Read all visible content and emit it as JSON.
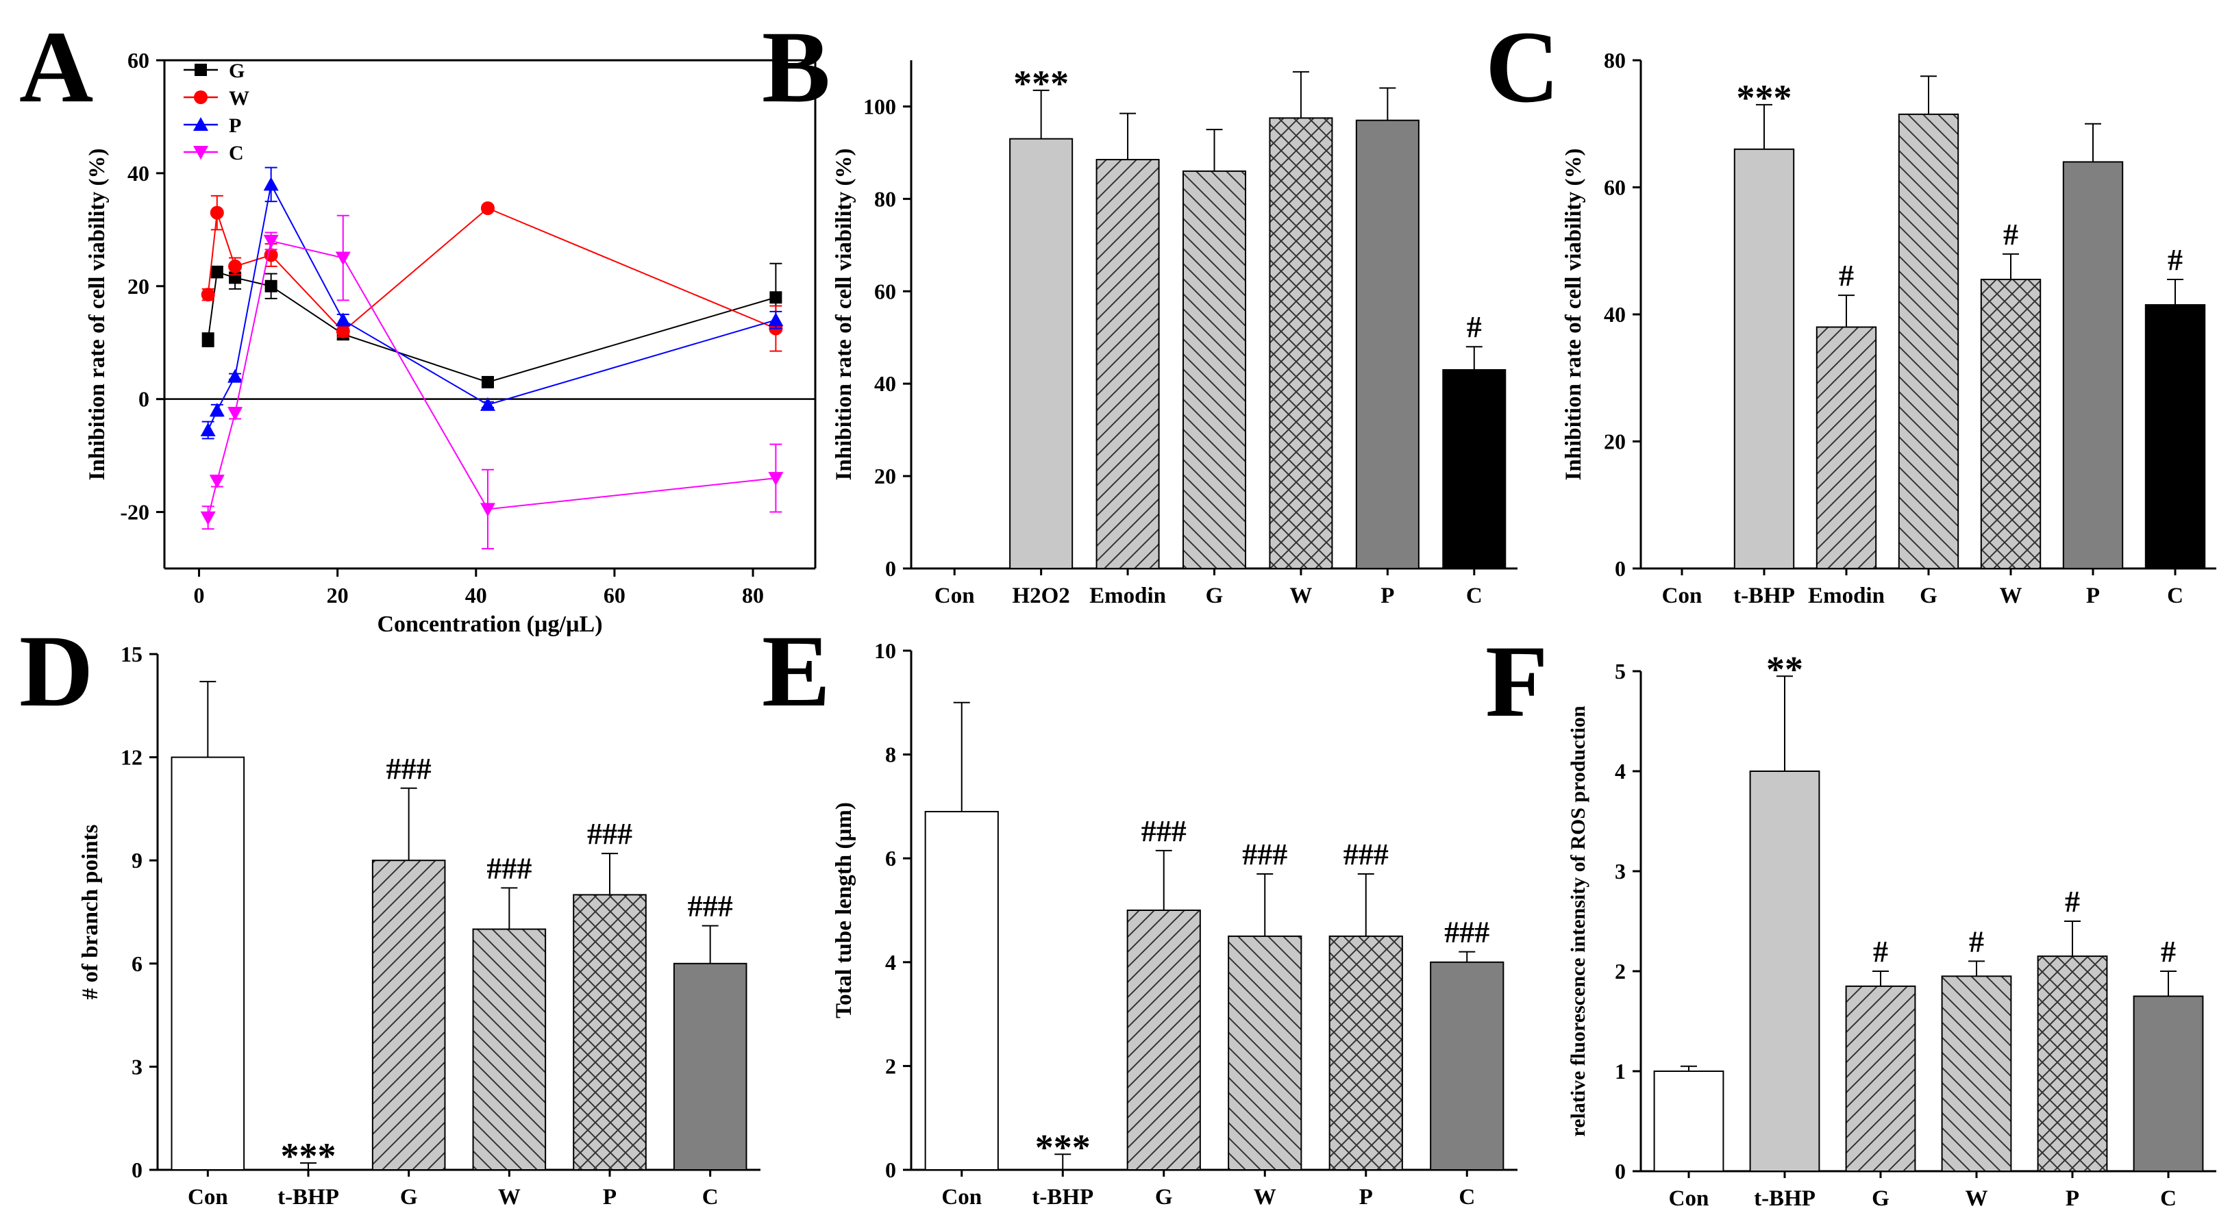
{
  "figure": {
    "panels": [
      {
        "letter": "A",
        "kind": "line"
      },
      {
        "letter": "B",
        "kind": "bar"
      },
      {
        "letter": "C",
        "kind": "bar"
      },
      {
        "letter": "D",
        "kind": "bar"
      },
      {
        "letter": "E",
        "kind": "bar"
      },
      {
        "letter": "F",
        "kind": "bar"
      }
    ],
    "fills": {
      "white": "#ffffff",
      "light": "#c8c8c8",
      "mid": "#b4b4b4",
      "dark": "#808080",
      "black": "#000000",
      "hatch_line": "#333333"
    }
  },
  "chart_data": [
    {
      "id": "A",
      "type": "line",
      "title": "",
      "xlabel": "Concentration (µg/µL)",
      "ylabel": "Inhibition rate of cell viability (%)",
      "xlim": [
        -5,
        89
      ],
      "ylim": [
        -30,
        60
      ],
      "xticks": [
        0,
        20,
        40,
        60,
        80
      ],
      "yticks": [
        -20,
        0,
        20,
        40,
        60
      ],
      "zero_line": true,
      "legend_position": "top-left",
      "series": [
        {
          "name": "G",
          "color": "#000000",
          "marker": "square",
          "x": [
            1.3,
            2.6,
            5.2,
            10.4,
            20.8,
            41.7,
            83.3
          ],
          "y": [
            10.5,
            22.5,
            21.5,
            20.0,
            11.5,
            3.0,
            18.0
          ],
          "err": [
            1.2,
            1.0,
            2.0,
            2.2,
            1.0,
            0.5,
            6.0
          ]
        },
        {
          "name": "W",
          "color": "#ff0000",
          "marker": "circle",
          "x": [
            1.3,
            2.6,
            5.2,
            10.4,
            20.8,
            41.7,
            83.3
          ],
          "y": [
            18.5,
            33.0,
            23.5,
            25.5,
            12.0,
            33.8,
            12.5
          ],
          "err": [
            1.0,
            3.0,
            1.5,
            2.0,
            1.0,
            0.5,
            4.0
          ]
        },
        {
          "name": "P",
          "color": "#0000ff",
          "marker": "triangle-up",
          "x": [
            1.3,
            2.6,
            5.2,
            10.4,
            20.8,
            41.7,
            83.3
          ],
          "y": [
            -5.5,
            -2.0,
            4.0,
            38.0,
            14.0,
            -1.0,
            14.0
          ],
          "err": [
            1.5,
            1.0,
            0.5,
            3.0,
            1.0,
            0.5,
            1.5
          ]
        },
        {
          "name": "C",
          "color": "#ff00ff",
          "marker": "triangle-down",
          "x": [
            1.3,
            2.6,
            5.2,
            10.4,
            20.8,
            41.7,
            83.3
          ],
          "y": [
            -21.0,
            -14.5,
            -2.5,
            28.0,
            25.0,
            -19.5,
            -14.0
          ],
          "err": [
            2.0,
            1.0,
            1.0,
            1.5,
            7.5,
            7.0,
            6.0
          ]
        }
      ]
    },
    {
      "id": "B",
      "type": "bar",
      "title": "",
      "xlabel": "",
      "ylabel": "Inhibition rate of cell viability (%)",
      "ylim": [
        0,
        110
      ],
      "yticks": [
        0,
        20,
        40,
        60,
        80,
        100
      ],
      "categories": [
        "Con",
        "H2O2",
        "Emodin",
        "G",
        "W",
        "P",
        "C"
      ],
      "values": [
        0,
        93,
        88.5,
        86,
        97.5,
        97,
        43
      ],
      "errors": [
        0,
        10.5,
        10,
        9,
        10,
        7,
        5
      ],
      "patterns": [
        "white",
        "light",
        "diag-fwd",
        "diag-back",
        "cross",
        "dark",
        "black"
      ],
      "annotations": [
        "",
        "***",
        "",
        "",
        "",
        "",
        "#"
      ]
    },
    {
      "id": "C",
      "type": "bar",
      "title": "",
      "xlabel": "",
      "ylabel": "Inhibition rate of cell viability (%)",
      "ylim": [
        0,
        80
      ],
      "yticks": [
        0,
        20,
        40,
        60,
        80
      ],
      "categories": [
        "Con",
        "t-BHP",
        "Emodin",
        "G",
        "W",
        "P",
        "C"
      ],
      "values": [
        0,
        66,
        38,
        71.5,
        45.5,
        64,
        41.5
      ],
      "errors": [
        0,
        7,
        5,
        6,
        4,
        6,
        4
      ],
      "patterns": [
        "white",
        "light",
        "diag-fwd",
        "diag-back",
        "cross",
        "dark",
        "black"
      ],
      "annotations": [
        "",
        "***",
        "#",
        "",
        "#",
        "",
        "#"
      ]
    },
    {
      "id": "D",
      "type": "bar",
      "title": "",
      "xlabel": "",
      "ylabel": "# of branch points",
      "ylim": [
        0,
        15
      ],
      "yticks": [
        0,
        3,
        6,
        9,
        12,
        15
      ],
      "categories": [
        "Con",
        "t-BHP",
        "G",
        "W",
        "P",
        "C"
      ],
      "values": [
        12,
        0,
        9,
        7,
        8,
        6
      ],
      "errors": [
        2.2,
        0.2,
        2.1,
        1.2,
        1.2,
        1.1
      ],
      "patterns": [
        "white",
        "light",
        "diag-fwd",
        "diag-back",
        "cross",
        "dark"
      ],
      "annotations": [
        "",
        "***",
        "###",
        "###",
        "###",
        "###"
      ]
    },
    {
      "id": "E",
      "type": "bar",
      "title": "",
      "xlabel": "",
      "ylabel": "Total tube length (µm)",
      "ylim": [
        0,
        10
      ],
      "yticks": [
        0,
        2,
        4,
        6,
        8,
        10
      ],
      "categories": [
        "Con",
        "t-BHP",
        "G",
        "W",
        "P",
        "C"
      ],
      "values": [
        6.9,
        0,
        5.0,
        4.5,
        4.5,
        4.0
      ],
      "errors": [
        2.1,
        0.3,
        1.15,
        1.2,
        1.2,
        0.2
      ],
      "patterns": [
        "white",
        "light",
        "diag-fwd",
        "diag-back",
        "cross",
        "dark"
      ],
      "annotations": [
        "",
        "***",
        "###",
        "###",
        "###",
        "###"
      ]
    },
    {
      "id": "F",
      "type": "bar",
      "title": "",
      "xlabel": "",
      "ylabel": "relative fluorescence intensity of ROS production",
      "ylim": [
        0,
        5
      ],
      "yticks": [
        0,
        1,
        2,
        3,
        4,
        5
      ],
      "categories": [
        "Con",
        "t-BHP",
        "G",
        "W",
        "P",
        "C"
      ],
      "values": [
        1.0,
        4.0,
        1.85,
        1.95,
        2.15,
        1.75
      ],
      "errors": [
        0.05,
        0.95,
        0.15,
        0.15,
        0.35,
        0.25
      ],
      "patterns": [
        "white",
        "light",
        "diag-fwd",
        "diag-back",
        "cross",
        "dark"
      ],
      "annotations": [
        "",
        "**",
        "#",
        "#",
        "#",
        "#"
      ]
    }
  ]
}
